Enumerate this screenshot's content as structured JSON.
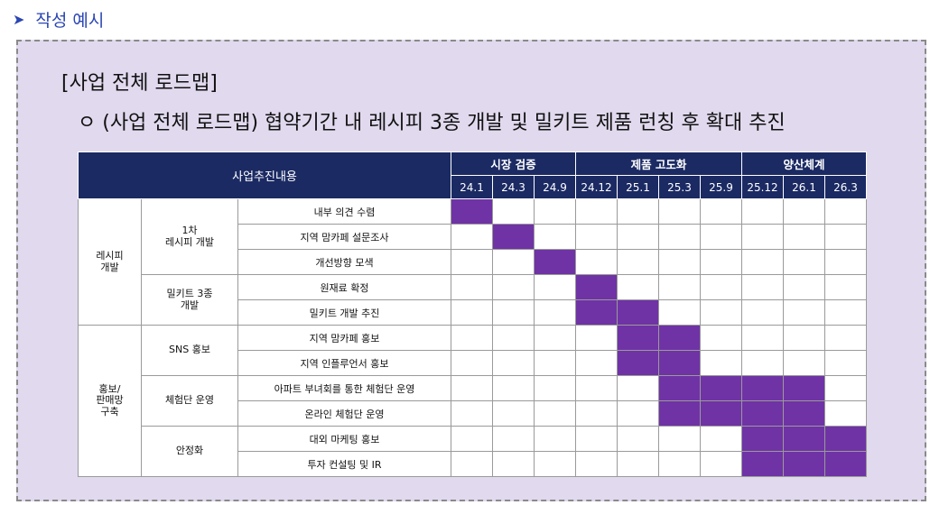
{
  "heading": {
    "label": "작성 예시"
  },
  "box": {
    "title": "[사업 전체 로드맵]",
    "subtitle": "ㅇ (사업 전체 로드맵) 협약기간 내 레시피 3종 개발 및 밀키트 제품 런칭 후 확대 추진"
  },
  "table": {
    "header_main": "사업추진내용",
    "phases": [
      {
        "label": "시장 검증",
        "span": 3
      },
      {
        "label": "제품 고도화",
        "span": 4
      },
      {
        "label": "양산체계",
        "span": 3
      }
    ],
    "periods": [
      "24.1",
      "24.3",
      "24.9",
      "24.12",
      "25.1",
      "25.3",
      "25.9",
      "25.12",
      "26.1",
      "26.3"
    ],
    "groups": [
      {
        "category": "레시피\n개발",
        "subgroups": [
          {
            "name": "1차\n레시피 개발",
            "tasks": [
              {
                "name": "내부 의견 수렴",
                "active": [
                  0
                ]
              },
              {
                "name": "지역 맘카페 설문조사",
                "active": [
                  1
                ]
              },
              {
                "name": "개선방향 모색",
                "active": [
                  2
                ]
              }
            ]
          },
          {
            "name": "밀키트 3종\n개발",
            "tasks": [
              {
                "name": "원재료 확정",
                "active": [
                  3
                ]
              },
              {
                "name": "밀키트 개발 추진",
                "active": [
                  3,
                  4
                ]
              }
            ]
          }
        ]
      },
      {
        "category": "홍보/\n판매망\n구축",
        "subgroups": [
          {
            "name": "SNS 홍보",
            "tasks": [
              {
                "name": "지역 맘카페 홍보",
                "active": [
                  4,
                  5
                ]
              },
              {
                "name": "지역 인플루언서 홍보",
                "active": [
                  4,
                  5
                ]
              }
            ]
          },
          {
            "name": "체험단 운영",
            "tasks": [
              {
                "name": "아파트 부녀회를 통한 체험단 운영",
                "active": [
                  5,
                  6,
                  7,
                  8
                ]
              },
              {
                "name": "온라인 체험단 운영",
                "active": [
                  5,
                  6,
                  7,
                  8
                ]
              }
            ]
          },
          {
            "name": "안정화",
            "tasks": [
              {
                "name": "대외 마케팅 홍보",
                "active": [
                  7,
                  8,
                  9
                ]
              },
              {
                "name": "투자 컨설팅 및 IR",
                "active": [
                  7,
                  8,
                  9
                ]
              }
            ]
          }
        ]
      }
    ]
  },
  "colors": {
    "header_bg": "#1b2a63",
    "active_cell": "#6f33a5",
    "panel_bg": "#e1d9ee",
    "heading_text": "#2b46b3"
  }
}
